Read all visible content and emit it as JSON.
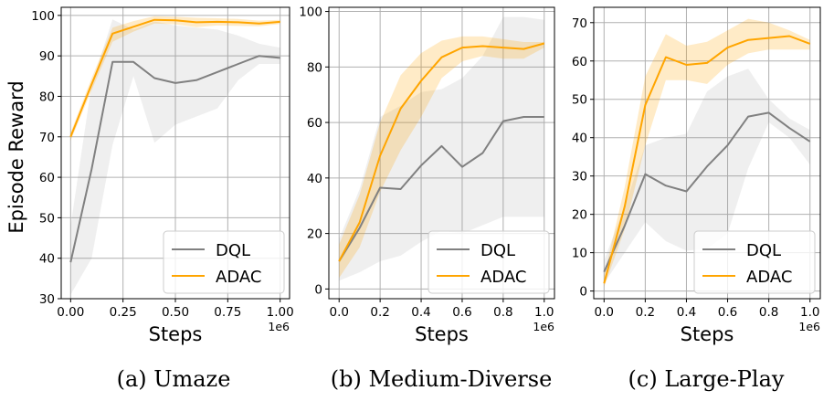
{
  "figure": {
    "ylabel": "Episode Reward"
  },
  "chart_data": [
    {
      "type": "line",
      "caption": "(a) Umaze",
      "xlabel": "Steps",
      "x_offset_label": "1e6",
      "xlim": [
        -0.045,
        1.045
      ],
      "ylim": [
        30,
        102
      ],
      "xticks": [
        0.0,
        0.25,
        0.5,
        0.75,
        1.0
      ],
      "xtick_labels": [
        "0.00",
        "0.25",
        "0.50",
        "0.75",
        "1.00"
      ],
      "yticks": [
        30,
        40,
        50,
        60,
        70,
        80,
        90,
        100
      ],
      "ytick_labels": [
        "30",
        "40",
        "50",
        "60",
        "70",
        "80",
        "90",
        "100"
      ],
      "grid": true,
      "legend": "lower-right",
      "series": [
        {
          "name": "DQL",
          "color": "#808080",
          "x": [
            0.0,
            0.1,
            0.2,
            0.3,
            0.4,
            0.5,
            0.6,
            0.7,
            0.8,
            0.9,
            1.0
          ],
          "y": [
            39,
            62,
            88.5,
            88.5,
            84.5,
            83.3,
            84,
            86,
            88,
            90,
            89.5
          ],
          "lower": [
            31,
            40,
            68,
            85,
            68.5,
            73,
            75,
            77,
            84,
            88,
            88
          ],
          "upper": [
            48,
            83,
            99,
            96.5,
            98.5,
            97.5,
            97,
            96.5,
            95,
            93,
            92
          ]
        },
        {
          "name": "ADAC",
          "color": "#FFA500",
          "x": [
            0.0,
            0.1,
            0.2,
            0.3,
            0.4,
            0.5,
            0.6,
            0.7,
            0.8,
            0.9,
            1.0
          ],
          "y": [
            70,
            83,
            95.5,
            97.2,
            98.9,
            98.8,
            98.3,
            98.4,
            98.3,
            98.0,
            98.4
          ],
          "lower": [
            69,
            81.5,
            93.5,
            96,
            98,
            97.8,
            97.1,
            97.5,
            97.4,
            97.3,
            97.9
          ],
          "upper": [
            71,
            84.5,
            97,
            98.6,
            99.8,
            99.7,
            99.4,
            99.3,
            99.1,
            98.7,
            98.9
          ]
        }
      ]
    },
    {
      "type": "line",
      "caption": "(b) Medium-Diverse",
      "xlabel": "Steps",
      "x_offset_label": "1e6",
      "xlim": [
        -0.05,
        1.05
      ],
      "ylim": [
        -3.5,
        101.5
      ],
      "xticks": [
        0.0,
        0.2,
        0.4,
        0.6,
        0.8,
        1.0
      ],
      "xtick_labels": [
        "0.0",
        "0.2",
        "0.4",
        "0.6",
        "0.8",
        "1.0"
      ],
      "yticks": [
        0,
        20,
        40,
        60,
        80,
        100
      ],
      "ytick_labels": [
        "0",
        "20",
        "40",
        "60",
        "80",
        "100"
      ],
      "grid": true,
      "legend": "lower-right",
      "series": [
        {
          "name": "DQL",
          "color": "#808080",
          "x": [
            0.0,
            0.1,
            0.2,
            0.3,
            0.4,
            0.5,
            0.6,
            0.7,
            0.8,
            0.9,
            1.0
          ],
          "y": [
            10,
            22,
            36.5,
            36,
            44.5,
            51.5,
            44,
            49,
            60.5,
            62,
            62
          ],
          "lower": [
            3,
            6,
            10,
            12,
            17,
            21,
            20,
            23,
            26,
            26,
            26
          ],
          "upper": [
            18,
            36,
            62,
            66,
            71,
            72,
            76,
            84,
            98,
            98,
            97
          ]
        },
        {
          "name": "ADAC",
          "color": "#FFA500",
          "x": [
            0.0,
            0.1,
            0.2,
            0.3,
            0.4,
            0.5,
            0.6,
            0.7,
            0.8,
            0.9,
            1.0
          ],
          "y": [
            10,
            24,
            48,
            65,
            75,
            83.5,
            87,
            87.5,
            87,
            86.5,
            88.5
          ],
          "lower": [
            4,
            15,
            35,
            50,
            62,
            76,
            82,
            84,
            83,
            83,
            87
          ],
          "upper": [
            16,
            34,
            60,
            77,
            85,
            89.5,
            91,
            91,
            90,
            89,
            89
          ]
        }
      ]
    },
    {
      "type": "line",
      "caption": "(c) Large-Play",
      "xlabel": "Steps",
      "x_offset_label": "1e6",
      "xlim": [
        -0.05,
        1.05
      ],
      "ylim": [
        -2,
        74
      ],
      "xticks": [
        0.0,
        0.2,
        0.4,
        0.6,
        0.8,
        1.0
      ],
      "xtick_labels": [
        "0.0",
        "0.2",
        "0.4",
        "0.6",
        "0.8",
        "1.0"
      ],
      "yticks": [
        0,
        10,
        20,
        30,
        40,
        50,
        60,
        70
      ],
      "ytick_labels": [
        "0",
        "10",
        "20",
        "30",
        "40",
        "50",
        "60",
        "70"
      ],
      "grid": true,
      "legend": "lower-right",
      "series": [
        {
          "name": "DQL",
          "color": "#808080",
          "x": [
            0.0,
            0.1,
            0.2,
            0.3,
            0.4,
            0.5,
            0.6,
            0.7,
            0.8,
            0.9,
            1.0
          ],
          "y": [
            5,
            17,
            30.5,
            27.5,
            26,
            32.5,
            38,
            45.5,
            46.5,
            42.5,
            39
          ],
          "lower": [
            2,
            10,
            18,
            13,
            10.5,
            11,
            15,
            32,
            44,
            40,
            33
          ],
          "upper": [
            8,
            22,
            38,
            40,
            41,
            52,
            56,
            58,
            50,
            45,
            42
          ]
        },
        {
          "name": "ADAC",
          "color": "#FFA500",
          "x": [
            0.0,
            0.1,
            0.2,
            0.3,
            0.4,
            0.5,
            0.6,
            0.7,
            0.8,
            0.9,
            1.0
          ],
          "y": [
            2,
            22,
            48.5,
            61,
            59,
            59.5,
            63.5,
            65.5,
            66,
            66.5,
            64.5
          ],
          "lower": [
            1,
            16,
            38,
            55,
            55,
            54,
            59,
            62,
            63,
            63,
            63
          ],
          "upper": [
            4,
            27,
            56,
            67,
            64,
            65,
            68,
            71,
            70,
            68,
            65.5
          ]
        }
      ]
    }
  ]
}
